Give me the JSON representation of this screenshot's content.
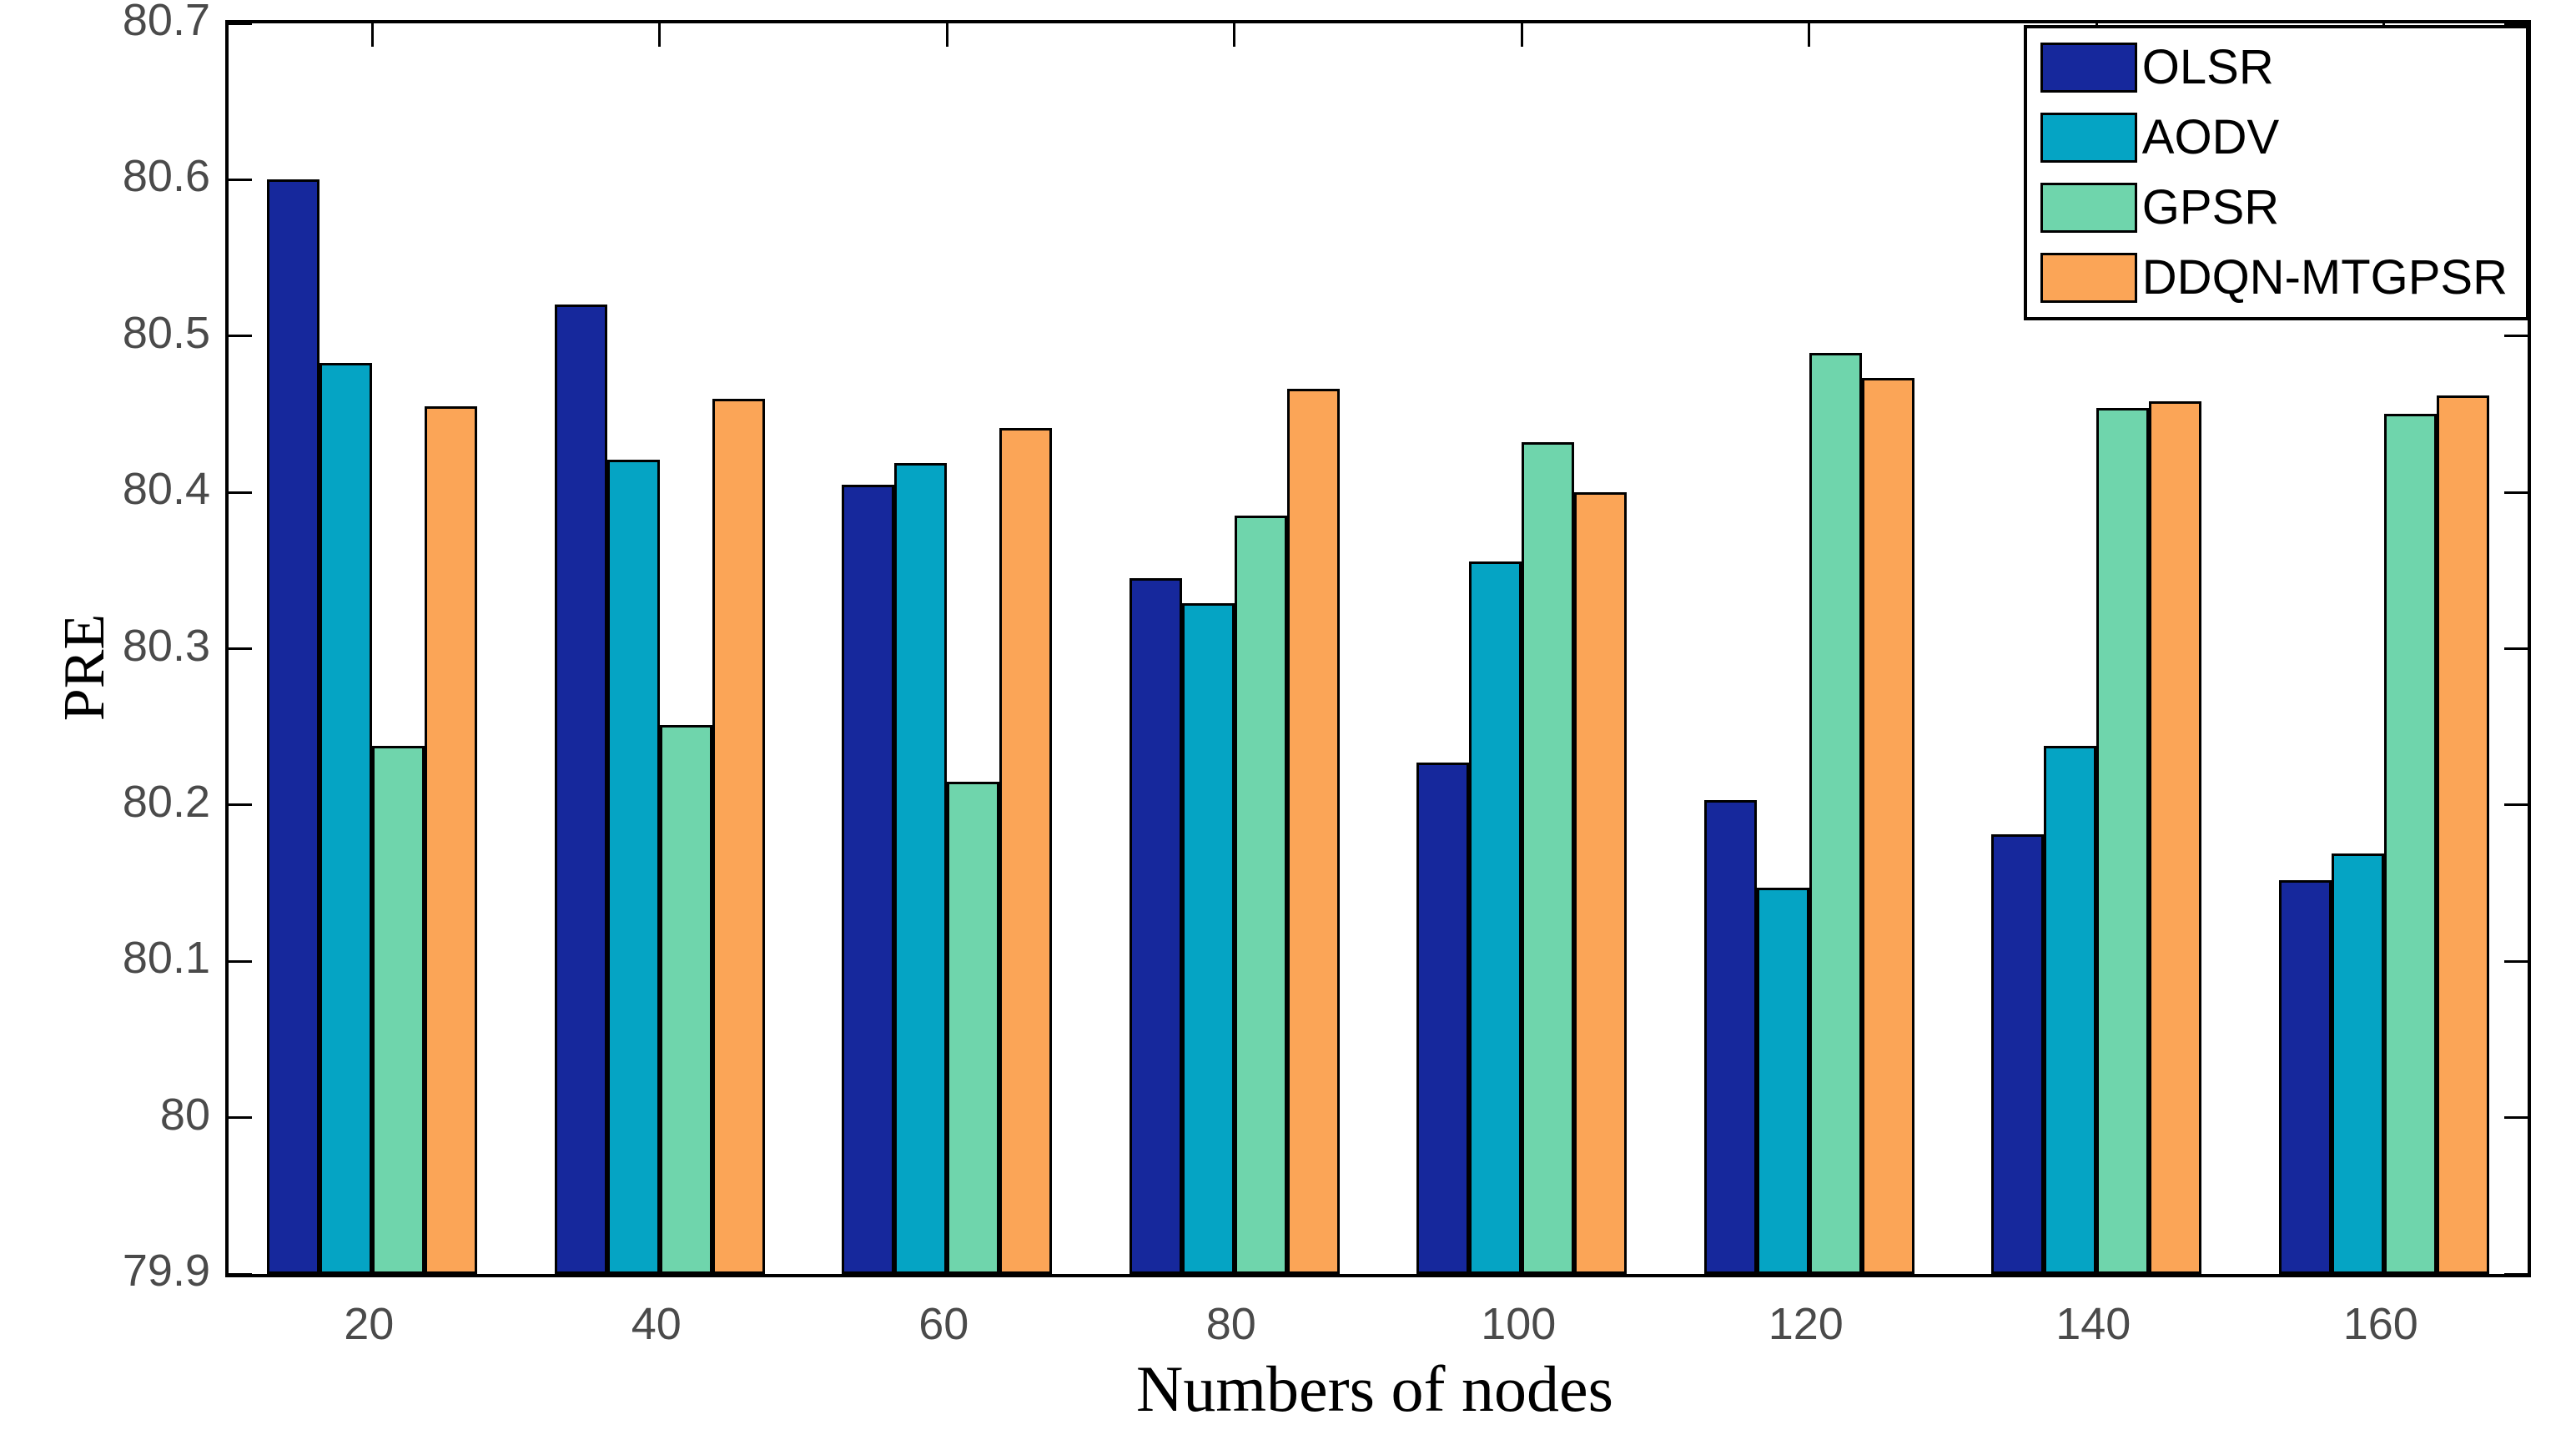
{
  "chart_data": {
    "type": "bar",
    "title": "",
    "xlabel": "Numbers of nodes",
    "ylabel": "PRE",
    "categories": [
      20,
      40,
      60,
      80,
      100,
      120,
      140,
      160
    ],
    "series": [
      {
        "name": "OLSR",
        "color": "#16289c",
        "values": [
          80.6,
          80.52,
          80.405,
          80.345,
          80.227,
          80.203,
          80.181,
          80.152
        ]
      },
      {
        "name": "AODV",
        "color": "#05a4c4",
        "values": [
          80.483,
          80.421,
          80.419,
          80.329,
          80.356,
          80.147,
          80.238,
          80.169
        ]
      },
      {
        "name": "GPSR",
        "color": "#6fd5ac",
        "values": [
          80.238,
          80.251,
          80.215,
          80.385,
          80.432,
          80.489,
          80.454,
          80.45
        ]
      },
      {
        "name": "DDQN-MTGPSR",
        "color": "#fba557",
        "values": [
          80.455,
          80.46,
          80.441,
          80.466,
          80.4,
          80.473,
          80.458,
          80.462
        ]
      }
    ],
    "ylim": [
      79.9,
      80.7
    ],
    "ytick_values": [
      79.9,
      80.0,
      80.1,
      80.2,
      80.3,
      80.4,
      80.5,
      80.6,
      80.7
    ],
    "ytick_labels": [
      "79.9",
      "80",
      "80.1",
      "80.2",
      "80.3",
      "80.4",
      "80.5",
      "80.6",
      "80.7"
    ],
    "xtick_labels": [
      "20",
      "40",
      "60",
      "80",
      "100",
      "120",
      "140",
      "160"
    ],
    "legend_position": "top-right",
    "grid": false,
    "tick_color": "#4a4a4a",
    "axis_color": "#000000"
  }
}
